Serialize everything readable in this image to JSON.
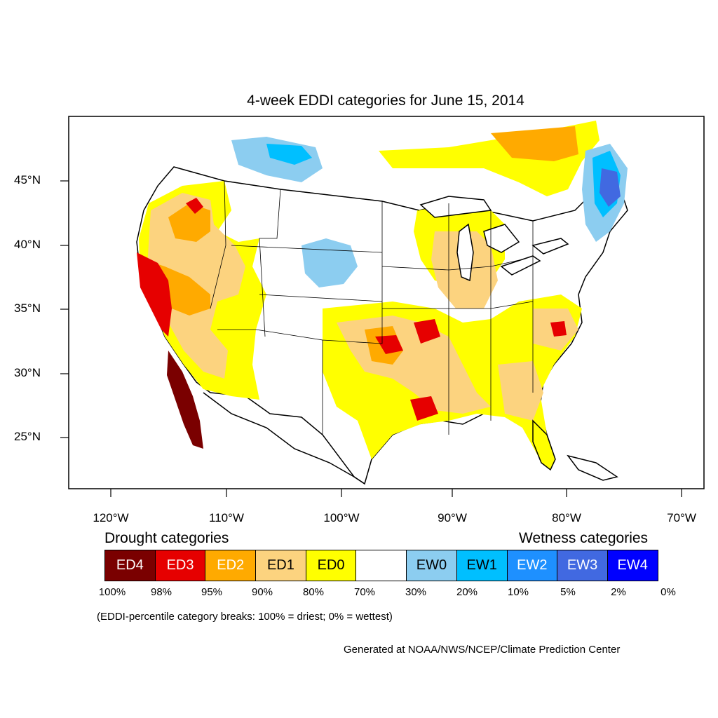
{
  "title": "4-week EDDI categories for June 15, 2014",
  "lat_labels": [
    "45°N",
    "40°N",
    "35°N",
    "30°N",
    "25°N"
  ],
  "lon_labels": [
    "120°W",
    "110°W",
    "100°W",
    "90°W",
    "80°W",
    "70°W"
  ],
  "legend": {
    "drought_heading": "Drought categories",
    "wetness_heading": "Wetness categories",
    "categories": [
      {
        "label": "ED4",
        "color": "#7a0000",
        "text_color": "#ffffff"
      },
      {
        "label": "ED3",
        "color": "#e60000",
        "text_color": "#ffffff"
      },
      {
        "label": "ED2",
        "color": "#ffaa00",
        "text_color": "#ffffff"
      },
      {
        "label": "ED1",
        "color": "#fcd37f",
        "text_color": "#000000"
      },
      {
        "label": "ED0",
        "color": "#ffff00",
        "text_color": "#000000"
      },
      {
        "label": "",
        "color": "#ffffff",
        "text_color": "#000000"
      },
      {
        "label": "EW0",
        "color": "#8ccdf0",
        "text_color": "#000000"
      },
      {
        "label": "EW1",
        "color": "#00bfff",
        "text_color": "#000000"
      },
      {
        "label": "EW2",
        "color": "#1e90ff",
        "text_color": "#ffffff"
      },
      {
        "label": "EW3",
        "color": "#4169e1",
        "text_color": "#ffffff"
      },
      {
        "label": "EW4",
        "color": "#0000ff",
        "text_color": "#ffffff"
      }
    ],
    "percentiles": [
      "100%",
      "98%",
      "95%",
      "90%",
      "80%",
      "70%",
      "30%",
      "20%",
      "10%",
      "5%",
      "2%",
      "0%"
    ]
  },
  "note": "(EDDI-percentile category breaks: 100% = driest; 0% = wettest)",
  "credit": "Generated at NOAA/NWS/NCEP/Climate Prediction Center"
}
